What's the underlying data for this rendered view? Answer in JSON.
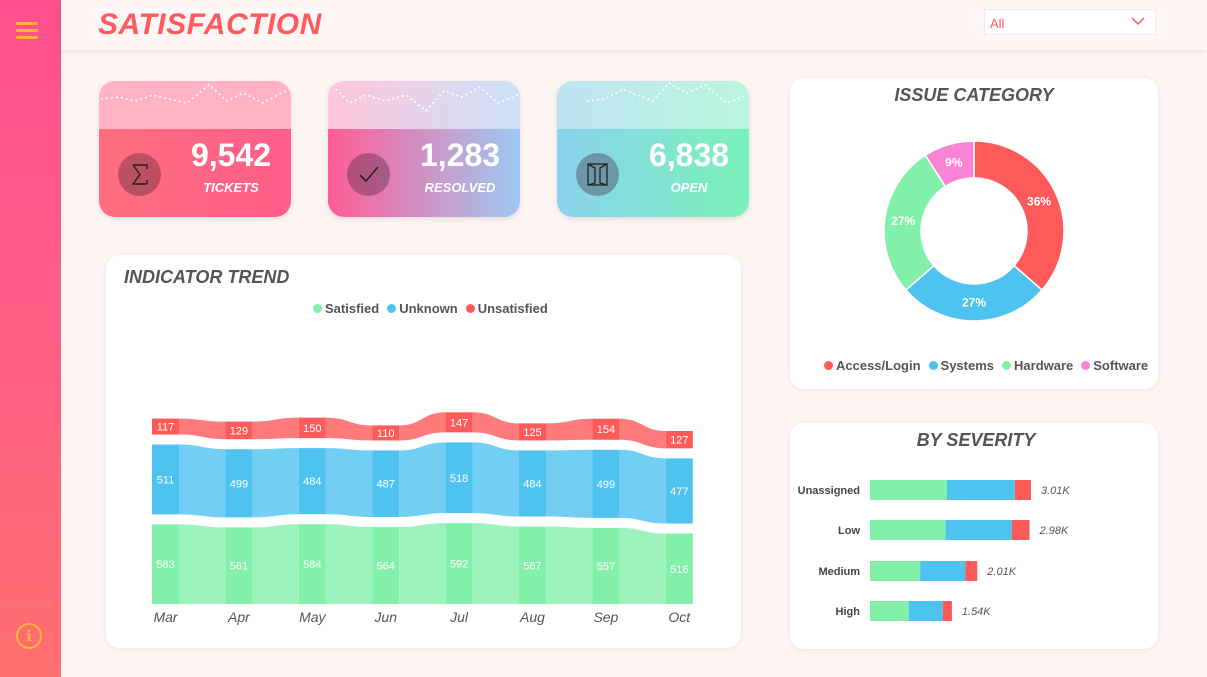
{
  "header": {
    "title": "SATISFACTION",
    "filter_value": "All"
  },
  "kpis": [
    {
      "value": "9,542",
      "label": "TICKETS",
      "icon": "sigma-icon"
    },
    {
      "value": "1,283",
      "label": "RESOLVED",
      "icon": "checkmark-icon"
    },
    {
      "value": "6,838",
      "label": "OPEN",
      "icon": "door-icon"
    }
  ],
  "colors": {
    "satisfied": "#83f0aa",
    "unknown": "#4fc3f0",
    "unsatisfied": "#fe5a5a",
    "software": "#fa84d4",
    "accent": "#ff5a5f"
  },
  "chart_data": [
    {
      "type": "bar",
      "subtype": "stacked-ribbon",
      "title": "INDICATOR TREND",
      "legend_position": "top-center",
      "categories": [
        "Mar",
        "Apr",
        "May",
        "Jun",
        "Jul",
        "Aug",
        "Sep",
        "Oct"
      ],
      "series": [
        {
          "name": "Satisfied",
          "values": [
            583,
            561,
            584,
            564,
            592,
            567,
            557,
            516
          ]
        },
        {
          "name": "Unknown",
          "values": [
            511,
            499,
            484,
            487,
            518,
            484,
            499,
            477
          ]
        },
        {
          "name": "Unsatisfied",
          "values": [
            117,
            129,
            150,
            110,
            147,
            125,
            154,
            127
          ]
        }
      ]
    },
    {
      "type": "pie",
      "subtype": "donut",
      "title": "ISSUE CATEGORY",
      "legend_position": "bottom-center",
      "categories": [
        "Access/Login",
        "Systems",
        "Hardware",
        "Software"
      ],
      "values": [
        36,
        27,
        27,
        9
      ],
      "labels": [
        "36%",
        "27%",
        "27%",
        "9%"
      ]
    },
    {
      "type": "bar",
      "subtype": "stacked-horizontal",
      "title": "BY SEVERITY",
      "categories": [
        "Unassigned",
        "Low",
        "Medium",
        "High"
      ],
      "totals": [
        "3.01K",
        "2.98K",
        "2.01K",
        "1.54K"
      ],
      "series": [
        {
          "values": [
            1.09,
            1.07,
            0.71,
            0.55
          ]
        },
        {
          "values": [
            0.96,
            0.94,
            0.64,
            0.48
          ]
        },
        {
          "values": [
            0.23,
            0.25,
            0.17,
            0.13
          ]
        }
      ]
    }
  ]
}
